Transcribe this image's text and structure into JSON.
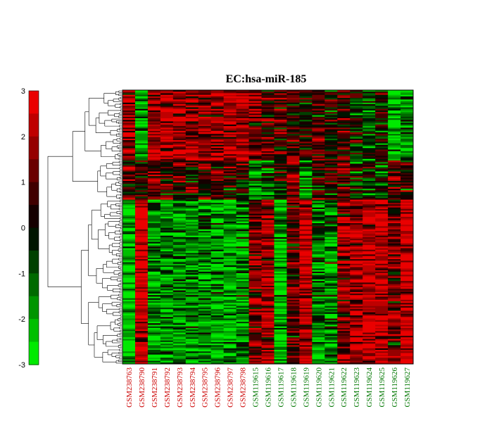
{
  "chart_data": {
    "type": "heatmap",
    "title": "EC:hsa-miR-185",
    "xlabel": "",
    "ylabel": "",
    "colorscale": {
      "range": [
        -3,
        3
      ],
      "ticks": [
        3,
        2,
        1,
        0,
        -1,
        -2,
        -3
      ],
      "low_color": "#00ff00",
      "mid_color": "#000000",
      "high_color": "#ff0000",
      "levels": 12
    },
    "columns": [
      {
        "name": "GSM238763",
        "group": "red"
      },
      {
        "name": "GSM238790",
        "group": "red"
      },
      {
        "name": "GSM238791",
        "group": "red"
      },
      {
        "name": "GSM238792",
        "group": "red"
      },
      {
        "name": "GSM238793",
        "group": "red"
      },
      {
        "name": "GSM238794",
        "group": "red"
      },
      {
        "name": "GSM238795",
        "group": "red"
      },
      {
        "name": "GSM238796",
        "group": "red"
      },
      {
        "name": "GSM238797",
        "group": "red"
      },
      {
        "name": "GSM238798",
        "group": "red"
      },
      {
        "name": "GSM119615",
        "group": "green"
      },
      {
        "name": "GSM119616",
        "group": "green"
      },
      {
        "name": "GSM119617",
        "group": "green"
      },
      {
        "name": "GSM119618",
        "group": "green"
      },
      {
        "name": "GSM119619",
        "group": "green"
      },
      {
        "name": "GSM119620",
        "group": "green"
      },
      {
        "name": "GSM119621",
        "group": "green"
      },
      {
        "name": "GSM119622",
        "group": "green"
      },
      {
        "name": "GSM119623",
        "group": "green"
      },
      {
        "name": "GSM119624",
        "group": "green"
      },
      {
        "name": "GSM119625",
        "group": "green"
      },
      {
        "name": "GSM119626",
        "group": "green"
      },
      {
        "name": "GSM119627",
        "group": "green"
      }
    ],
    "group_colors": {
      "red": "#cc0000",
      "green": "#007700"
    },
    "row_clusters": [
      {
        "rows": 45,
        "profile": [
          1.8,
          -2.0,
          1.9,
          2.0,
          2.0,
          1.9,
          1.8,
          1.9,
          2.0,
          2.1,
          1.2,
          1.0,
          0.8,
          0.6,
          0.2,
          1.2,
          0.3,
          0.8,
          -0.2,
          -1.0,
          0.0,
          -2.4,
          -1.5
        ]
      },
      {
        "rows": 25,
        "profile": [
          0.6,
          0.4,
          0.9,
          0.6,
          0.7,
          0.4,
          0.4,
          0.6,
          0.5,
          0.3,
          -1.6,
          -1.0,
          -0.2,
          1.6,
          -1.8,
          0.4,
          0.4,
          0.9,
          -0.6,
          -0.4,
          -0.6,
          0.9,
          0.0
        ]
      },
      {
        "rows": 105,
        "profile": [
          -2.6,
          2.6,
          -1.8,
          -1.6,
          -1.7,
          -1.8,
          -1.4,
          -1.8,
          -2.0,
          -1.6,
          1.2,
          1.8,
          -2.2,
          0.8,
          2.2,
          -1.4,
          -1.6,
          1.7,
          2.0,
          2.2,
          2.4,
          1.0,
          2.5
        ]
      }
    ],
    "dendrogram": "hierarchical row clustering (left side)"
  }
}
